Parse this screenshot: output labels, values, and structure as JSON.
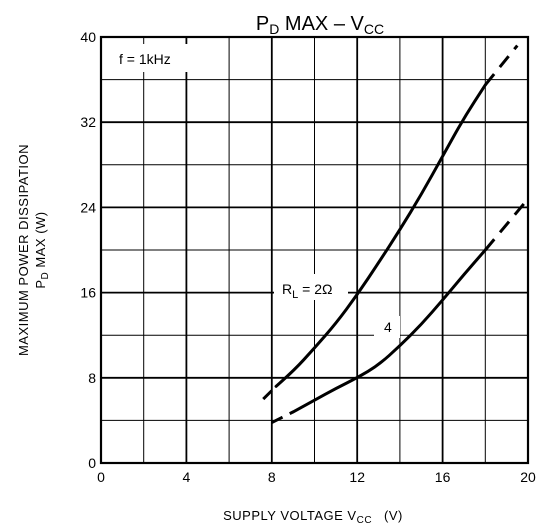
{
  "chart_data": {
    "type": "line",
    "title": {
      "main": "P",
      "main_sub": "D",
      "rest": " MAX  –  V",
      "rest_sub": "CC"
    },
    "xlabel": {
      "main": "SUPPLY VOLTAGE   V",
      "sub": "CC",
      "unit": "(V)"
    },
    "ylabel": {
      "line1": "MAXIMUM POWER DISSIPATION",
      "line2_main": "P",
      "line2_sub": "D",
      "line2_rest": " MAX   (W)"
    },
    "xlim": [
      0,
      20
    ],
    "ylim": [
      0,
      40
    ],
    "x_ticks": [
      0,
      4,
      8,
      12,
      16,
      20
    ],
    "y_ticks": [
      0,
      8,
      16,
      24,
      32,
      40
    ],
    "grid": true,
    "annotation": "f = 1kHz",
    "series": [
      {
        "name": "R = 2Ω",
        "label_main": "R",
        "label_sub": "L",
        "label_rest": " = 2Ω",
        "solid": [
          [
            8.2,
            7.2
          ],
          [
            9,
            8.6
          ],
          [
            10,
            10.8
          ],
          [
            11,
            13.1
          ],
          [
            12,
            15.8
          ],
          [
            13,
            18.8
          ],
          [
            14,
            21.9
          ],
          [
            15,
            25.2
          ],
          [
            16,
            28.8
          ],
          [
            17,
            32.4
          ],
          [
            18,
            35.5
          ]
        ],
        "dashed": [
          [
            7.6,
            6.0
          ],
          [
            8.2,
            7.2
          ]
        ],
        "dashed_end": [
          [
            18,
            35.5
          ],
          [
            19.5,
            39.2
          ]
        ]
      },
      {
        "name": "4",
        "label_main": "4",
        "label_sub": "",
        "label_rest": "",
        "solid": [
          [
            9,
            4.8
          ],
          [
            10,
            5.9
          ],
          [
            11,
            7.0
          ],
          [
            12,
            8.0
          ],
          [
            13,
            9.2
          ],
          [
            14,
            11.0
          ],
          [
            15,
            13.0
          ],
          [
            16,
            15.3
          ],
          [
            17,
            17.7
          ],
          [
            18,
            20.0
          ]
        ],
        "dashed": [
          [
            8.0,
            3.8
          ],
          [
            9,
            4.8
          ]
        ],
        "dashed_end": [
          [
            18,
            20.0
          ],
          [
            20,
            24.8
          ]
        ]
      }
    ]
  }
}
